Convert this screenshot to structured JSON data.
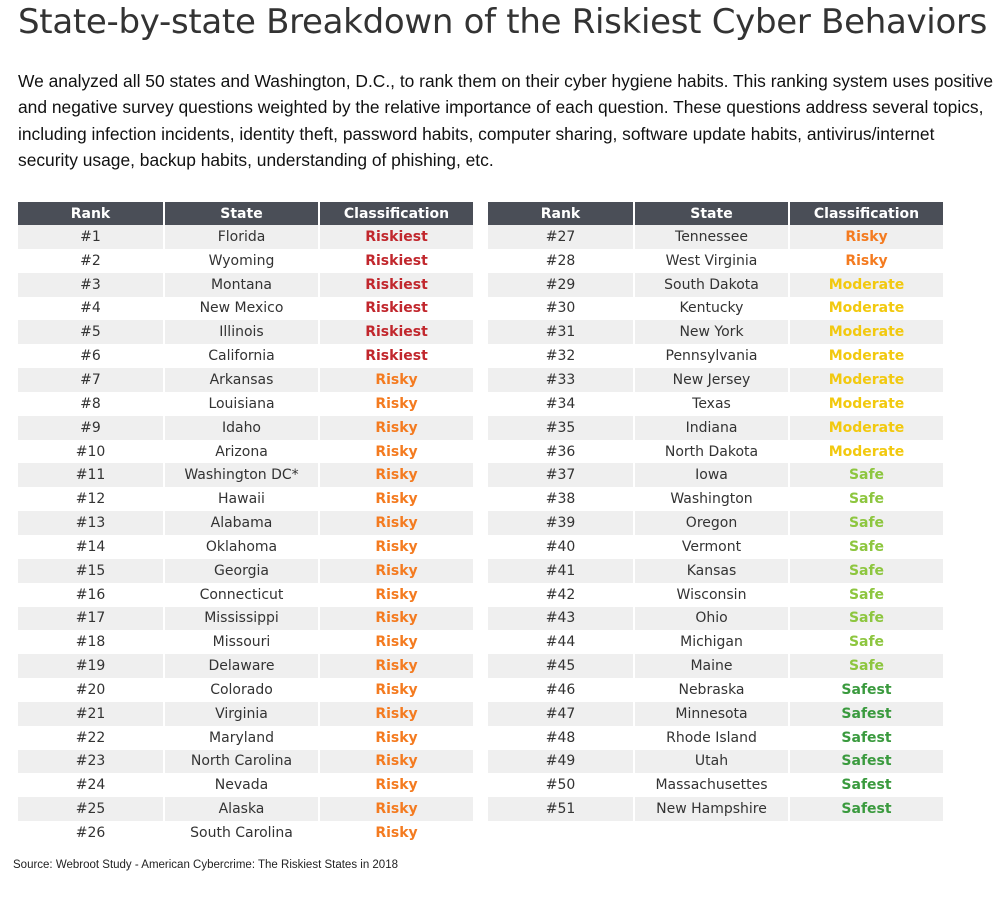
{
  "title": "State-by-state Breakdown of the Riskiest Cyber Behaviors",
  "intro": "We analyzed all 50 states and Washington, D.C., to rank them on their cyber hygiene habits. This ranking system uses positive and negative survey questions weighted by the relative importance of each question. These questions address several topics, including infection incidents, identity theft, password habits, computer sharing, software update habits, antivirus/internet security usage, backup habits, understanding of phishing, etc.",
  "columns": [
    "Rank",
    "State",
    "Classification"
  ],
  "classification_colors": {
    "Riskiest": "#c1272d",
    "Risky": "#f47b20",
    "Moderate": "#f2c90f",
    "Safe": "#8dc63f",
    "Safest": "#3a9a3e"
  },
  "left_table": [
    {
      "rank": "#1",
      "state": "Florida",
      "classification": "Riskiest"
    },
    {
      "rank": "#2",
      "state": "Wyoming",
      "classification": "Riskiest"
    },
    {
      "rank": "#3",
      "state": "Montana",
      "classification": "Riskiest"
    },
    {
      "rank": "#4",
      "state": "New Mexico",
      "classification": "Riskiest"
    },
    {
      "rank": "#5",
      "state": "Illinois",
      "classification": "Riskiest"
    },
    {
      "rank": "#6",
      "state": "California",
      "classification": "Riskiest"
    },
    {
      "rank": "#7",
      "state": "Arkansas",
      "classification": "Risky"
    },
    {
      "rank": "#8",
      "state": "Louisiana",
      "classification": "Risky"
    },
    {
      "rank": "#9",
      "state": "Idaho",
      "classification": "Risky"
    },
    {
      "rank": "#10",
      "state": "Arizona",
      "classification": "Risky"
    },
    {
      "rank": "#11",
      "state": "Washington DC*",
      "classification": "Risky"
    },
    {
      "rank": "#12",
      "state": "Hawaii",
      "classification": "Risky"
    },
    {
      "rank": "#13",
      "state": "Alabama",
      "classification": "Risky"
    },
    {
      "rank": "#14",
      "state": "Oklahoma",
      "classification": "Risky"
    },
    {
      "rank": "#15",
      "state": "Georgia",
      "classification": "Risky"
    },
    {
      "rank": "#16",
      "state": "Connecticut",
      "classification": "Risky"
    },
    {
      "rank": "#17",
      "state": "Mississippi",
      "classification": "Risky"
    },
    {
      "rank": "#18",
      "state": "Missouri",
      "classification": "Risky"
    },
    {
      "rank": "#19",
      "state": "Delaware",
      "classification": "Risky"
    },
    {
      "rank": "#20",
      "state": "Colorado",
      "classification": "Risky"
    },
    {
      "rank": "#21",
      "state": "Virginia",
      "classification": "Risky"
    },
    {
      "rank": "#22",
      "state": "Maryland",
      "classification": "Risky"
    },
    {
      "rank": "#23",
      "state": "North Carolina",
      "classification": "Risky"
    },
    {
      "rank": "#24",
      "state": "Nevada",
      "classification": "Risky"
    },
    {
      "rank": "#25",
      "state": "Alaska",
      "classification": "Risky"
    },
    {
      "rank": "#26",
      "state": "South Carolina",
      "classification": "Risky"
    }
  ],
  "right_table": [
    {
      "rank": "#27",
      "state": "Tennessee",
      "classification": "Risky"
    },
    {
      "rank": "#28",
      "state": "West Virginia",
      "classification": "Risky"
    },
    {
      "rank": "#29",
      "state": "South Dakota",
      "classification": "Moderate"
    },
    {
      "rank": "#30",
      "state": "Kentucky",
      "classification": "Moderate"
    },
    {
      "rank": "#31",
      "state": "New York",
      "classification": "Moderate"
    },
    {
      "rank": "#32",
      "state": "Pennsylvania",
      "classification": "Moderate"
    },
    {
      "rank": "#33",
      "state": "New Jersey",
      "classification": "Moderate"
    },
    {
      "rank": "#34",
      "state": "Texas",
      "classification": "Moderate"
    },
    {
      "rank": "#35",
      "state": "Indiana",
      "classification": "Moderate"
    },
    {
      "rank": "#36",
      "state": "North Dakota",
      "classification": "Moderate"
    },
    {
      "rank": "#37",
      "state": "Iowa",
      "classification": "Safe"
    },
    {
      "rank": "#38",
      "state": "Washington",
      "classification": "Safe"
    },
    {
      "rank": "#39",
      "state": "Oregon",
      "classification": "Safe"
    },
    {
      "rank": "#40",
      "state": "Vermont",
      "classification": "Safe"
    },
    {
      "rank": "#41",
      "state": "Kansas",
      "classification": "Safe"
    },
    {
      "rank": "#42",
      "state": "Wisconsin",
      "classification": "Safe"
    },
    {
      "rank": "#43",
      "state": "Ohio",
      "classification": "Safe"
    },
    {
      "rank": "#44",
      "state": "Michigan",
      "classification": "Safe"
    },
    {
      "rank": "#45",
      "state": "Maine",
      "classification": "Safe"
    },
    {
      "rank": "#46",
      "state": "Nebraska",
      "classification": "Safest"
    },
    {
      "rank": "#47",
      "state": "Minnesota",
      "classification": "Safest"
    },
    {
      "rank": "#48",
      "state": "Rhode Island",
      "classification": "Safest"
    },
    {
      "rank": "#49",
      "state": "Utah",
      "classification": "Safest"
    },
    {
      "rank": "#50",
      "state": "Massachusettes",
      "classification": "Safest"
    },
    {
      "rank": "#51",
      "state": "New Hampshire",
      "classification": "Safest"
    }
  ],
  "source": "Source: Webroot Study - American Cybercrime: The Riskiest States in 2018"
}
